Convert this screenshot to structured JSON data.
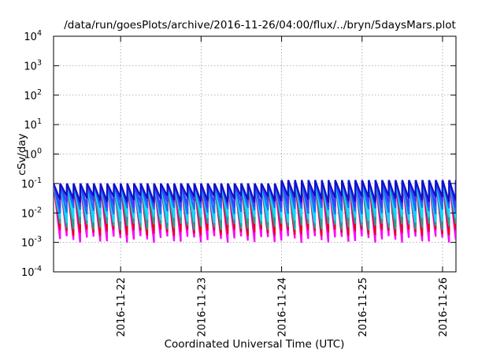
{
  "chart_data": {
    "type": "line",
    "title": "/data/run/goesPlots/archive/2016-11-26/04:00/flux/../bryn/5daysMars.plot",
    "xlabel": "Coordinated Universal Time (UTC)",
    "ylabel": "cSv/day",
    "yscale": "log",
    "ylim": [
      0.0001,
      10000
    ],
    "y_ticks": [
      {
        "base": "10",
        "exp": "-4"
      },
      {
        "base": "10",
        "exp": "-3"
      },
      {
        "base": "10",
        "exp": "-2"
      },
      {
        "base": "10",
        "exp": "-1"
      },
      {
        "base": "10",
        "exp": "0"
      },
      {
        "base": "10",
        "exp": "1"
      },
      {
        "base": "10",
        "exp": "2"
      },
      {
        "base": "10",
        "exp": "3"
      },
      {
        "base": "10",
        "exp": "4"
      }
    ],
    "x_tick_labels": [
      "2016-11-22",
      "2016-11-23",
      "2016-11-24",
      "2016-11-25",
      "2016-11-26"
    ],
    "xlim": [
      "2016-11-21 04:00",
      "2016-11-26 04:00"
    ],
    "grid": true,
    "legend": "none",
    "pattern": {
      "description": "sawtooth spikes, about 12 per day",
      "spikes_per_day": 12,
      "peak": 0.1,
      "peak_late": 0.13,
      "late_start": "2016-11-24 00:00"
    },
    "series_colors": [
      "#ff00ff",
      "#e8001c",
      "#2a9d8f",
      "#0fd9ff",
      "#1a6ef5",
      "#3c3cff",
      "#1010c8"
    ],
    "series_troughs": [
      0.0013,
      0.0022,
      0.0035,
      0.006,
      0.012,
      0.02,
      0.03
    ]
  }
}
